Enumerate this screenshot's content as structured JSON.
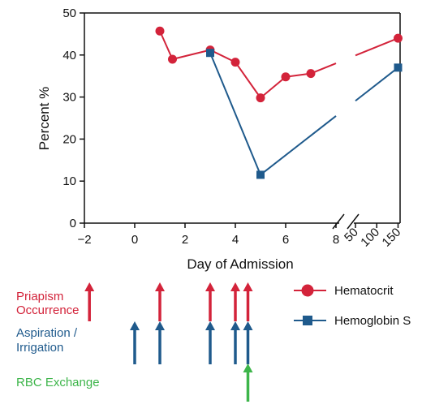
{
  "chart_data": {
    "type": "line",
    "xlabel": "Day of Admission",
    "ylabel": "Percent %",
    "ylim": [
      0,
      50
    ],
    "x_ticks": [
      "−2",
      "0",
      "2",
      "4",
      "6",
      "8"
    ],
    "x_break_ticks": [
      "50",
      "100",
      "150"
    ],
    "y_ticks": [
      "0",
      "10",
      "20",
      "30",
      "40",
      "50"
    ],
    "series": [
      {
        "name": "Hematocrit",
        "marker": "circle",
        "color": "#d3233a",
        "points": [
          {
            "day": 1,
            "value": 45.7
          },
          {
            "day": 1.5,
            "value": 39
          },
          {
            "day": 3,
            "value": 41.2
          },
          {
            "day": 4,
            "value": 38.3
          },
          {
            "day": 5,
            "value": 29.8
          },
          {
            "day": 6,
            "value": 34.8
          },
          {
            "day": 7,
            "value": 35.6
          },
          {
            "day": 150,
            "value": 44
          }
        ]
      },
      {
        "name": "Hemoglobin S",
        "marker": "square",
        "color": "#1f5a8c",
        "points": [
          {
            "day": 3,
            "value": 40.5
          },
          {
            "day": 5,
            "value": 11.5
          },
          {
            "day": 150,
            "value": 37
          }
        ]
      }
    ],
    "events": [
      {
        "label": "Priapism\nOccurrence",
        "color": "#d3233a",
        "days": [
          -1.8,
          1,
          3,
          4,
          4.5
        ]
      },
      {
        "label": "Aspiration /\nIrrigation",
        "color": "#1f5a8c",
        "days": [
          0,
          1,
          3,
          4,
          4.5
        ]
      },
      {
        "label": "RBC Exchange",
        "color": "#3db54a",
        "days": [
          4.5
        ]
      }
    ]
  }
}
